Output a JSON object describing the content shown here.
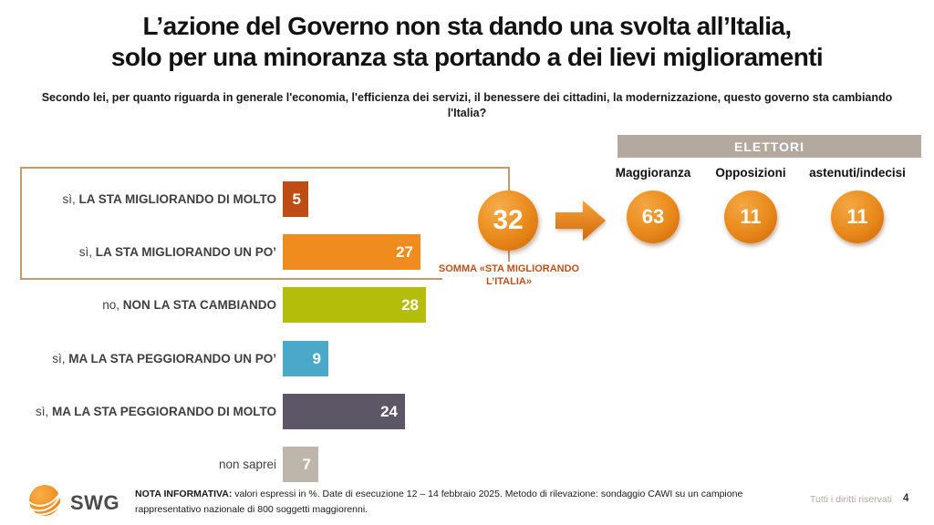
{
  "title": {
    "line1": "L’azione del Governo non sta dando una svolta all’Italia,",
    "line2": "solo per una minoranza sta portando a dei lievi miglioramenti"
  },
  "subtitle": "Secondo lei, per quanto riguarda in generale l'economia, l'efficienza dei servizi, il benessere dei cittadini, la modernizzazione, questo governo sta cambiando l'Italia?",
  "chart_data": {
    "type": "bar",
    "orientation": "horizontal",
    "unit": "%",
    "xlim": [
      0,
      35
    ],
    "rows": [
      {
        "prefix": "sì,",
        "label": "LA STA MIGLIORANDO DI MOLTO",
        "value": 5,
        "color": "#bd4d15"
      },
      {
        "prefix": "sì,",
        "label": "LA STA MIGLIORANDO UN PO’",
        "value": 27,
        "color": "#f08c1e"
      },
      {
        "prefix": "no,",
        "label": "NON LA STA CAMBIANDO",
        "value": 28,
        "color": "#b5bd0b"
      },
      {
        "prefix": "sì,",
        "label": "MA LA STA PEGGIORANDO UN PO’",
        "value": 9,
        "color": "#4aa9c8"
      },
      {
        "prefix": "sì,",
        "label": "MA LA STA PEGGIORANDO DI MOLTO",
        "value": 24,
        "color": "#5c5666"
      },
      {
        "prefix": "non saprei",
        "label": "",
        "value": 7,
        "color": "#beb5ab"
      }
    ],
    "sum": {
      "value": 32,
      "caption": "SOMMA «STA MIGLIORANDO L’ITALIA»",
      "covers_rows": [
        0,
        1
      ]
    },
    "elettori": {
      "header": "ELETTORI",
      "columns": [
        {
          "label": "Maggioranza",
          "value": 63
        },
        {
          "label": "Opposizioni",
          "value": 11
        },
        {
          "label": "astenuti/indecisi",
          "value": 11
        }
      ]
    },
    "colors": {
      "accent_orange": "#e8891b",
      "bracket": "#c49a6c",
      "sum_caption": "#b5531f",
      "elettori_header_bg": "#b3a99f"
    }
  },
  "icons": {
    "arrow_right_icon": "orange block arrow pointing right",
    "swg_logo_icon": "orange globe with white orbit stripes"
  },
  "footer": {
    "brand": "SWG",
    "note_label": "NOTA INFORMATIVA:",
    "note_text": " valori espressi in %. Date di esecuzione 12 – 14 febbraio 2025. Metodo di rilevazione: sondaggio CAWI su un campione rappresentativo nazionale di 800 soggetti maggiorenni.",
    "rights": "Tutti i diritti riservati",
    "page": "4"
  }
}
